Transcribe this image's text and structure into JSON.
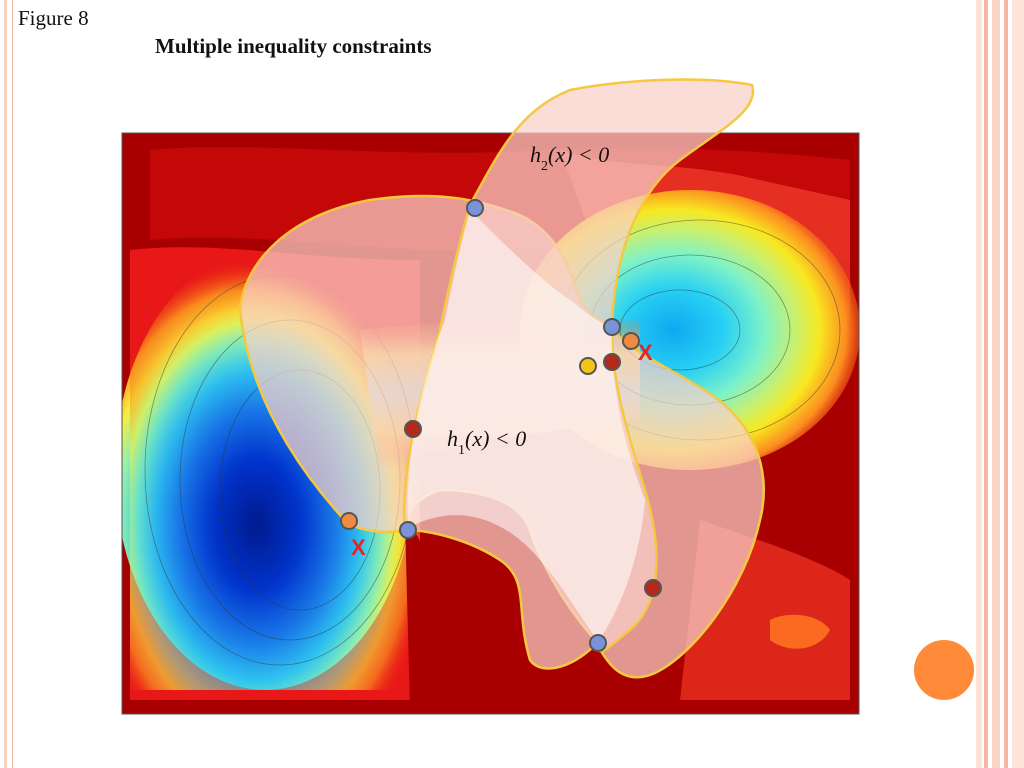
{
  "figure_label": "Figure 8",
  "title": "Multiple inequality constraints",
  "constraints": {
    "h1": {
      "text": "h",
      "sub": "1",
      "rest": "(x) < 0"
    },
    "h2": {
      "text": "h",
      "sub": "2",
      "rest": "(x) < 0"
    }
  },
  "markers": {
    "local_minimum_marker": "X"
  },
  "colors": {
    "region_fill": "#f8c8c0",
    "region_stroke": "#f5c842",
    "point_blue": "#7a93d8",
    "point_orange": "#f08a40",
    "point_red": "#b5281c",
    "point_yellow": "#f3c21b",
    "accent_circle": "#fe8a3a",
    "x_mark": "#e0262a"
  }
}
